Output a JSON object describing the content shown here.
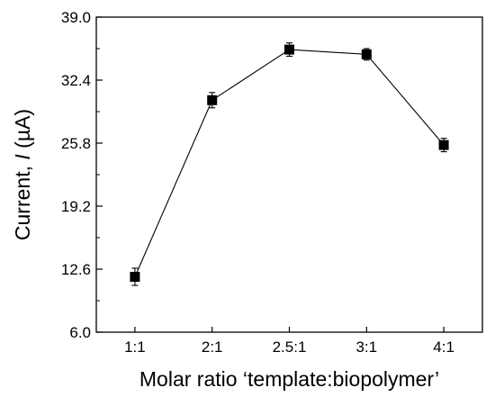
{
  "chart_data": {
    "type": "line",
    "categories": [
      "1:1",
      "2:1",
      "2.5:1",
      "3:1",
      "4:1"
    ],
    "series": [
      {
        "values": [
          11.8,
          30.3,
          35.6,
          35.1,
          25.6
        ],
        "errors": [
          0.9,
          0.8,
          0.7,
          0.6,
          0.7
        ],
        "marker": "square",
        "color": "#000000"
      }
    ],
    "xlabel": "Molar ratio ‘template:biopolymer’",
    "ylabel_parts": [
      "Current, ",
      "I",
      " (µA)"
    ],
    "ylim": [
      6.0,
      39.0
    ],
    "yticks": [
      "6.0",
      "12.6",
      "19.2",
      "25.8",
      "32.4",
      "39.0"
    ],
    "grid": false,
    "legend": "none"
  }
}
